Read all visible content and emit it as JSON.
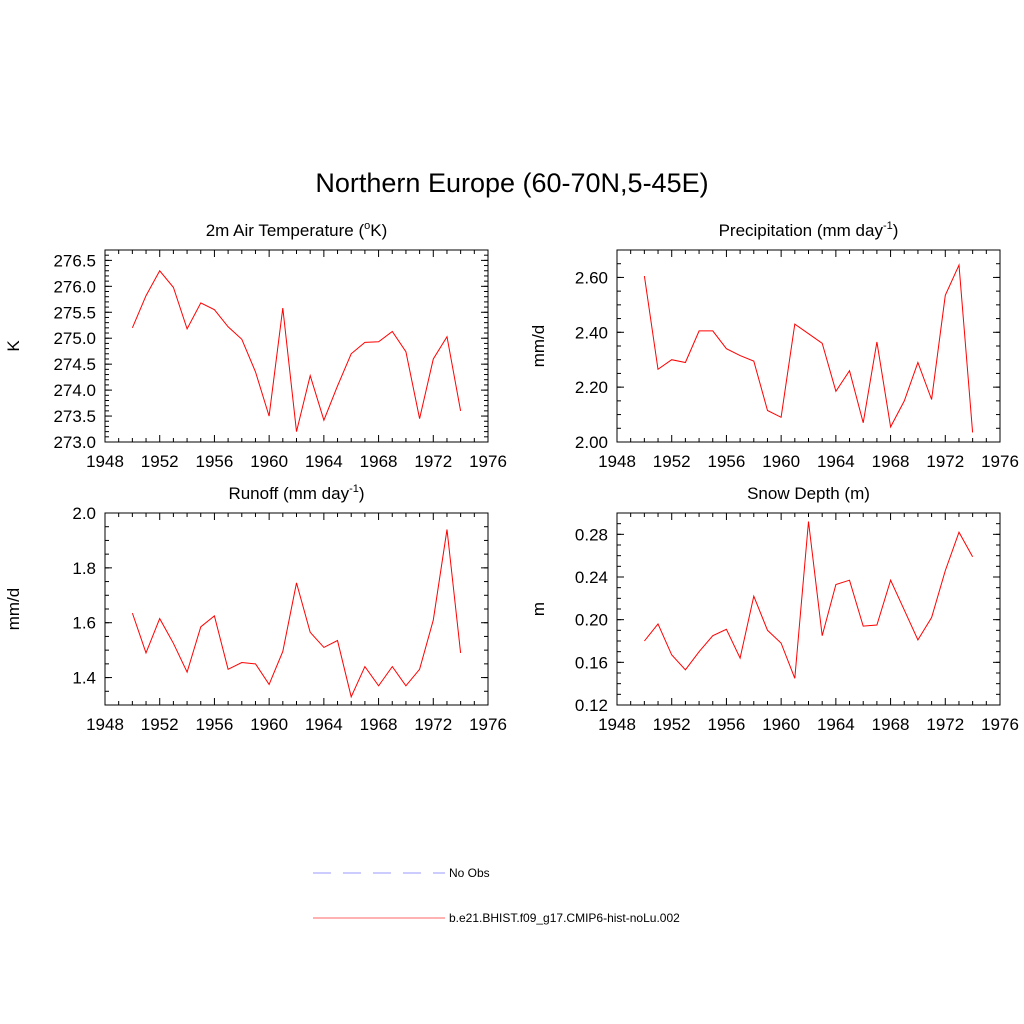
{
  "title": "Northern Europe (60-70N,5-45E)",
  "legend": [
    {
      "label": "No Obs",
      "color": "#9999ff",
      "dash": true
    },
    {
      "label": "b.e21.BHIST.f09_g17.CMIP6-hist-noLu.002",
      "color": "#ff6666",
      "dash": false
    }
  ],
  "line_color": "#ff0000",
  "chart_data": [
    {
      "type": "line",
      "title_main": "2m Air Temperature (",
      "title_sup": "o",
      "title_tail": "K)",
      "ylabel": "K",
      "xlim": [
        1948,
        1976
      ],
      "xticks": [
        "1948",
        "1952",
        "1956",
        "1960",
        "1964",
        "1968",
        "1972",
        "1976"
      ],
      "ylim": [
        273.0,
        276.7
      ],
      "yticks": [
        "273.0",
        "273.5",
        "274.0",
        "274.5",
        "275.0",
        "275.5",
        "276.0",
        "276.5"
      ],
      "x": [
        1950,
        1951,
        1952,
        1953,
        1954,
        1955,
        1956,
        1957,
        1958,
        1959,
        1960,
        1961,
        1962,
        1963,
        1964,
        1965,
        1966,
        1967,
        1968,
        1969,
        1970,
        1971,
        1972,
        1973,
        1974
      ],
      "series": [
        {
          "values": [
            275.2,
            275.82,
            276.3,
            275.98,
            275.18,
            275.68,
            275.55,
            275.22,
            274.98,
            274.35,
            273.5,
            275.58,
            273.2,
            274.28,
            273.42,
            274.08,
            274.7,
            274.92,
            274.93,
            275.13,
            274.74,
            273.45,
            274.6,
            275.03,
            273.6
          ]
        }
      ]
    },
    {
      "type": "line",
      "title_main": "Precipitation (mm day",
      "title_sup": "-1",
      "title_tail": ")",
      "ylabel": "mm/d",
      "xlim": [
        1948,
        1976
      ],
      "xticks": [
        "1948",
        "1952",
        "1956",
        "1960",
        "1964",
        "1968",
        "1972",
        "1976"
      ],
      "ylim": [
        2.0,
        2.7
      ],
      "yticks": [
        "2.00",
        "2.20",
        "2.40",
        "2.60"
      ],
      "x": [
        1950,
        1951,
        1952,
        1953,
        1954,
        1955,
        1956,
        1957,
        1958,
        1959,
        1960,
        1961,
        1962,
        1963,
        1964,
        1965,
        1966,
        1967,
        1968,
        1969,
        1970,
        1971,
        1972,
        1973,
        1974
      ],
      "series": [
        {
          "values": [
            2.605,
            2.265,
            2.3,
            2.29,
            2.405,
            2.405,
            2.34,
            2.315,
            2.295,
            2.115,
            2.09,
            2.43,
            2.395,
            2.36,
            2.185,
            2.26,
            2.07,
            2.365,
            2.055,
            2.15,
            2.29,
            2.155,
            2.535,
            2.645,
            2.035
          ]
        }
      ]
    },
    {
      "type": "line",
      "title_main": "Runoff (mm day",
      "title_sup": "-1",
      "title_tail": ")",
      "ylabel": "mm/d",
      "xlim": [
        1948,
        1976
      ],
      "xticks": [
        "1948",
        "1952",
        "1956",
        "1960",
        "1964",
        "1968",
        "1972",
        "1976"
      ],
      "ylim": [
        1.3,
        2.0
      ],
      "yticks": [
        "1.4",
        "1.6",
        "1.8",
        "2.0"
      ],
      "x": [
        1950,
        1951,
        1952,
        1953,
        1954,
        1955,
        1956,
        1957,
        1958,
        1959,
        1960,
        1961,
        1962,
        1963,
        1964,
        1965,
        1966,
        1967,
        1968,
        1969,
        1970,
        1971,
        1972,
        1973,
        1974
      ],
      "series": [
        {
          "values": [
            1.635,
            1.49,
            1.615,
            1.525,
            1.42,
            1.585,
            1.625,
            1.43,
            1.455,
            1.45,
            1.375,
            1.495,
            1.745,
            1.565,
            1.51,
            1.535,
            1.33,
            1.44,
            1.37,
            1.44,
            1.37,
            1.43,
            1.61,
            1.94,
            1.49
          ]
        }
      ]
    },
    {
      "type": "line",
      "title_main": "Snow Depth (m)",
      "title_sup": "",
      "title_tail": "",
      "ylabel": "m",
      "xlim": [
        1948,
        1976
      ],
      "xticks": [
        "1948",
        "1952",
        "1956",
        "1960",
        "1964",
        "1968",
        "1972",
        "1976"
      ],
      "ylim": [
        0.12,
        0.3
      ],
      "yticks": [
        "0.12",
        "0.16",
        "0.20",
        "0.24",
        "0.28"
      ],
      "x": [
        1950,
        1951,
        1952,
        1953,
        1954,
        1955,
        1956,
        1957,
        1958,
        1959,
        1960,
        1961,
        1962,
        1963,
        1964,
        1965,
        1966,
        1967,
        1968,
        1969,
        1970,
        1971,
        1972,
        1973,
        1974
      ],
      "series": [
        {
          "values": [
            0.18,
            0.196,
            0.167,
            0.153,
            0.17,
            0.185,
            0.191,
            0.164,
            0.222,
            0.19,
            0.178,
            0.145,
            0.292,
            0.185,
            0.233,
            0.237,
            0.194,
            0.195,
            0.237,
            0.209,
            0.181,
            0.202,
            0.246,
            0.282,
            0.259
          ]
        }
      ]
    }
  ]
}
